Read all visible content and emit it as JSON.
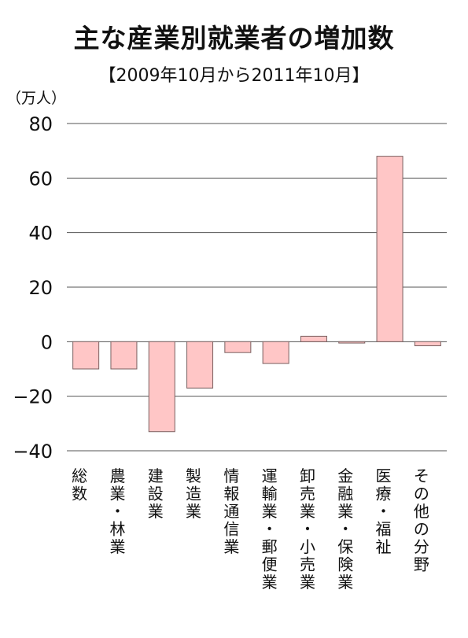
{
  "chart_data": {
    "type": "bar",
    "title": "主な産業別就業者の増加数",
    "subtitle": "【2009年10月から2011年10月】",
    "ylabel": "（万人）",
    "xlabel": "",
    "ylim": [
      -40,
      80
    ],
    "yticks": [
      80,
      60,
      40,
      20,
      0,
      -20,
      -40
    ],
    "ytick_labels": [
      "80",
      "60",
      "40",
      "20",
      "0",
      "−20",
      "−40"
    ],
    "grid": true,
    "categories": [
      "総数",
      "農業・林業",
      "建設業",
      "製造業",
      "情報通信業",
      "運輸業・郵便業",
      "卸売業・小売業",
      "金融業・保険業",
      "医療・福祉",
      "その他の分野"
    ],
    "values": [
      -10,
      -10,
      -33,
      -17,
      -4,
      -8,
      2,
      -0.5,
      68,
      -1.5
    ],
    "colors": {
      "bar_fill": "#ffc6c6",
      "bar_stroke": "#7a6060",
      "grid": "#555555",
      "text": "#111111"
    }
  }
}
